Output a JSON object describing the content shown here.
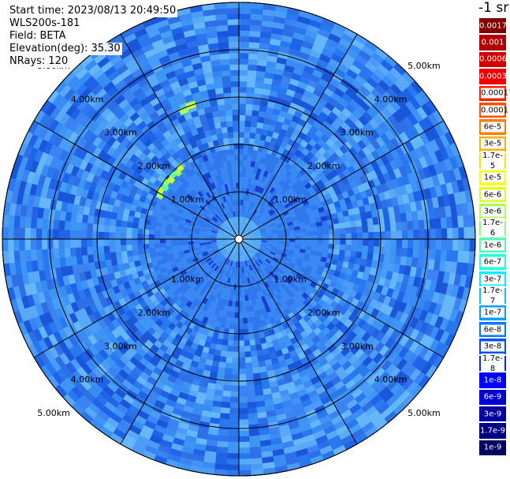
{
  "info": {
    "start_time": "Start time: 2023/08/13 20:49:50",
    "device": "WLS200s-181",
    "field": "Field: BETA",
    "elevation": "Elevation(deg): 35.30",
    "nrays": "NRays: 120"
  },
  "colorbar": {
    "unit": "-1 sr",
    "entries": [
      {
        "label": "0.0017",
        "color": "#800000"
      },
      {
        "label": "0.001",
        "color": "#b00000"
      },
      {
        "label": "0.0006",
        "color": "#d00000"
      },
      {
        "label": "0.0003",
        "color": "#f00000"
      },
      {
        "label": "0.00017",
        "color": "#ff2000"
      },
      {
        "label": "0.0001",
        "color": "#ff5000"
      },
      {
        "label": "6e-5",
        "color": "#ff8000"
      },
      {
        "label": "3e-5",
        "color": "#ffb000"
      },
      {
        "label": "1.7e-5",
        "color": "#ffe000"
      },
      {
        "label": "1e-5",
        "color": "#ffff00"
      },
      {
        "label": "6e-6",
        "color": "#e0ff20"
      },
      {
        "label": "3e-6",
        "color": "#b0ff50"
      },
      {
        "label": "1.7e-6",
        "color": "#80ff80"
      },
      {
        "label": "1e-6",
        "color": "#50ffb0"
      },
      {
        "label": "6e-7",
        "color": "#20ffe0"
      },
      {
        "label": "3e-7",
        "color": "#00f0ff"
      },
      {
        "label": "1.7e-7",
        "color": "#00c8ff"
      },
      {
        "label": "1e-7",
        "color": "#00a0ff"
      },
      {
        "label": "6e-8",
        "color": "#0078ff"
      },
      {
        "label": "3e-8",
        "color": "#0050ff"
      },
      {
        "label": "1.7e-8",
        "color": "#0028ff"
      },
      {
        "label": "1e-8",
        "color": "#0000ff"
      },
      {
        "label": "6e-9",
        "color": "#0000d0"
      },
      {
        "label": "3e-9",
        "color": "#0000a0"
      },
      {
        "label": "1.7e-9",
        "color": "#000080"
      },
      {
        "label": "1e-9",
        "color": "#000060"
      }
    ]
  },
  "chart_data": {
    "type": "polar-ppi",
    "range_rings_km": [
      1,
      2,
      3,
      4,
      5
    ],
    "range_labels": [
      "1.00km",
      "2.00km",
      "3.00km",
      "4.00km",
      "5.00km"
    ],
    "max_range_km": 5,
    "n_rays": 120,
    "background_level": "1e-7",
    "features": [
      {
        "name": "arc-1",
        "az_start": 297,
        "az_end": 322,
        "range_km": 1.9,
        "level": "1.7e-6"
      },
      {
        "name": "arc-2",
        "az_start": 335,
        "az_end": 342,
        "range_km": 2.95,
        "level": "1.7e-6"
      }
    ]
  }
}
